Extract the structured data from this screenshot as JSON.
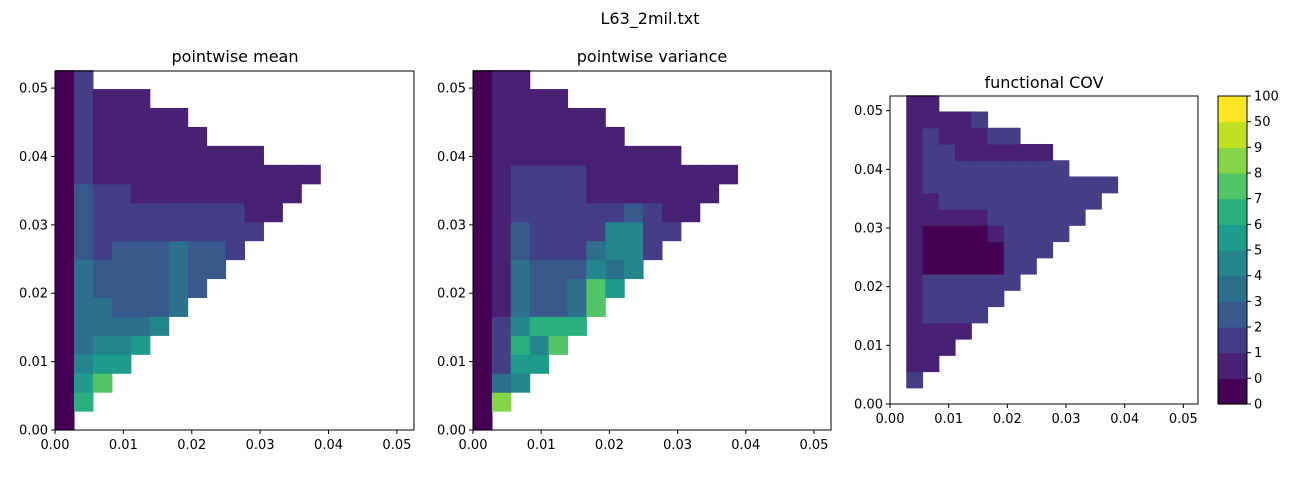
{
  "figure": {
    "suptitle": "L63_2mil.txt"
  },
  "chart_data": [
    {
      "type": "heatmap",
      "title": "pointwise mean",
      "xlabel": "",
      "ylabel": "",
      "xlim": [
        0.0,
        0.0525
      ],
      "ylim": [
        0.0,
        0.0525
      ],
      "xticks": [
        "0.00",
        "0.01",
        "0.02",
        "0.03",
        "0.04",
        "0.05"
      ],
      "yticks": [
        "0.00",
        "0.01",
        "0.02",
        "0.03",
        "0.04",
        "0.05"
      ],
      "cell_size": 0.00277,
      "cells": {
        "0": [
          [
            0,
            19,
            0
          ]
        ],
        "1": [
          [
            1,
            2,
            7
          ],
          [
            2,
            3,
            6
          ],
          [
            3,
            4,
            5
          ],
          [
            4,
            9,
            4
          ],
          [
            9,
            13,
            3
          ],
          [
            13,
            19,
            2
          ]
        ],
        "2": [
          [
            2,
            3,
            8
          ],
          [
            3,
            4,
            6
          ],
          [
            4,
            5,
            5
          ],
          [
            5,
            7,
            4
          ],
          [
            7,
            9,
            3
          ],
          [
            9,
            13,
            2
          ],
          [
            13,
            18,
            1
          ]
        ],
        "3": [
          [
            3,
            4,
            6
          ],
          [
            4,
            5,
            5
          ],
          [
            5,
            6,
            4
          ],
          [
            6,
            10,
            3
          ],
          [
            10,
            13,
            2
          ],
          [
            13,
            18,
            1
          ]
        ],
        "4": [
          [
            4,
            5,
            6
          ],
          [
            5,
            6,
            4
          ],
          [
            6,
            10,
            3
          ],
          [
            10,
            12,
            2
          ],
          [
            12,
            18,
            1
          ]
        ],
        "5": [
          [
            5,
            6,
            5
          ],
          [
            6,
            10,
            3
          ],
          [
            10,
            12,
            2
          ],
          [
            12,
            17,
            1
          ]
        ],
        "6": [
          [
            6,
            10,
            4
          ],
          [
            10,
            12,
            2
          ],
          [
            12,
            17,
            1
          ]
        ],
        "7": [
          [
            7,
            10,
            3
          ],
          [
            10,
            12,
            2
          ],
          [
            12,
            16,
            1
          ]
        ],
        "8": [
          [
            8,
            10,
            3
          ],
          [
            10,
            12,
            2
          ],
          [
            12,
            15,
            1
          ]
        ],
        "9": [
          [
            9,
            12,
            2
          ],
          [
            12,
            15,
            1
          ]
        ],
        "10": [
          [
            10,
            11,
            2
          ],
          [
            11,
            15,
            1
          ]
        ],
        "11": [
          [
            11,
            14,
            1
          ]
        ],
        "12": [
          [
            12,
            14,
            1
          ]
        ],
        "13": [
          [
            13,
            14,
            1
          ]
        ]
      }
    },
    {
      "type": "heatmap",
      "title": "pointwise variance",
      "xlabel": "",
      "ylabel": "",
      "xlim": [
        0.0,
        0.0525
      ],
      "ylim": [
        0.0,
        0.0525
      ],
      "xticks": [
        "0.00",
        "0.01",
        "0.02",
        "0.03",
        "0.04",
        "0.05"
      ],
      "yticks": [
        "0.00",
        "0.01",
        "0.02",
        "0.03",
        "0.04",
        "0.05"
      ],
      "cell_size": 0.00277,
      "cells": {
        "0": [
          [
            0,
            19,
            0
          ]
        ],
        "1": [
          [
            1,
            2,
            9
          ],
          [
            2,
            3,
            4
          ],
          [
            3,
            6,
            2
          ],
          [
            6,
            19,
            1
          ]
        ],
        "2": [
          [
            2,
            3,
            5
          ],
          [
            3,
            4,
            6
          ],
          [
            4,
            5,
            7
          ],
          [
            5,
            6,
            5
          ],
          [
            6,
            9,
            4
          ],
          [
            9,
            11,
            3
          ],
          [
            11,
            14,
            2
          ],
          [
            14,
            19,
            1
          ]
        ],
        "3": [
          [
            3,
            4,
            6
          ],
          [
            4,
            5,
            5
          ],
          [
            5,
            6,
            7
          ],
          [
            6,
            9,
            3
          ],
          [
            9,
            14,
            2
          ],
          [
            14,
            18,
            1
          ]
        ],
        "4": [
          [
            4,
            5,
            8
          ],
          [
            5,
            6,
            7
          ],
          [
            6,
            9,
            3
          ],
          [
            9,
            14,
            2
          ],
          [
            14,
            18,
            1
          ]
        ],
        "5": [
          [
            5,
            6,
            7
          ],
          [
            6,
            8,
            4
          ],
          [
            8,
            9,
            3
          ],
          [
            9,
            14,
            2
          ],
          [
            14,
            17,
            1
          ]
        ],
        "6": [
          [
            6,
            8,
            8
          ],
          [
            8,
            9,
            5
          ],
          [
            9,
            10,
            4
          ],
          [
            10,
            12,
            2
          ],
          [
            12,
            17,
            1
          ]
        ],
        "7": [
          [
            7,
            8,
            6
          ],
          [
            8,
            9,
            4
          ],
          [
            9,
            11,
            5
          ],
          [
            11,
            12,
            2
          ],
          [
            12,
            16,
            1
          ]
        ],
        "8": [
          [
            8,
            9,
            5
          ],
          [
            9,
            11,
            5
          ],
          [
            11,
            12,
            3
          ],
          [
            12,
            15,
            1
          ]
        ],
        "9": [
          [
            9,
            12,
            2
          ],
          [
            12,
            15,
            1
          ]
        ],
        "10": [
          [
            10,
            11,
            2
          ],
          [
            11,
            15,
            1
          ]
        ],
        "11": [
          [
            11,
            14,
            1
          ]
        ],
        "12": [
          [
            12,
            14,
            1
          ]
        ],
        "13": [
          [
            13,
            14,
            1
          ]
        ]
      }
    },
    {
      "type": "heatmap",
      "title": "functional COV",
      "xlabel": "",
      "ylabel": "",
      "xlim": [
        0.0,
        0.0525
      ],
      "ylim": [
        0.0,
        0.0525
      ],
      "xticks": [
        "0.00",
        "0.01",
        "0.02",
        "0.03",
        "0.04",
        "0.05"
      ],
      "yticks": [
        "0.00",
        "0.01",
        "0.02",
        "0.03",
        "0.04",
        "0.05"
      ],
      "cell_size": 0.00277,
      "cells": {
        "1": [
          [
            1,
            2,
            2
          ],
          [
            2,
            4,
            1
          ],
          [
            4,
            6,
            1
          ],
          [
            6,
            14,
            1
          ],
          [
            14,
            15,
            1
          ],
          [
            15,
            17,
            1
          ],
          [
            17,
            19,
            1
          ]
        ],
        "2": [
          [
            2,
            5,
            1
          ],
          [
            5,
            8,
            2
          ],
          [
            8,
            11,
            0
          ],
          [
            11,
            13,
            1
          ],
          [
            13,
            17,
            2
          ],
          [
            17,
            19,
            1
          ]
        ],
        "3": [
          [
            3,
            5,
            1
          ],
          [
            5,
            8,
            2
          ],
          [
            8,
            11,
            0
          ],
          [
            11,
            12,
            1
          ],
          [
            12,
            16,
            2
          ],
          [
            16,
            17,
            1
          ],
          [
            17,
            18,
            1
          ]
        ],
        "4": [
          [
            4,
            5,
            1
          ],
          [
            5,
            8,
            2
          ],
          [
            8,
            11,
            0
          ],
          [
            11,
            12,
            1
          ],
          [
            12,
            15,
            2
          ],
          [
            15,
            17,
            1
          ],
          [
            17,
            18,
            1
          ]
        ],
        "5": [
          [
            5,
            8,
            2
          ],
          [
            8,
            11,
            0
          ],
          [
            11,
            12,
            1
          ],
          [
            12,
            15,
            2
          ],
          [
            15,
            17,
            1
          ],
          [
            17,
            18,
            2
          ]
        ],
        "6": [
          [
            6,
            8,
            2
          ],
          [
            8,
            10,
            0
          ],
          [
            10,
            11,
            1
          ],
          [
            11,
            15,
            2
          ],
          [
            15,
            16,
            1
          ],
          [
            16,
            17,
            2
          ]
        ],
        "7": [
          [
            7,
            10,
            2
          ],
          [
            10,
            15,
            2
          ],
          [
            15,
            16,
            1
          ],
          [
            16,
            17,
            2
          ]
        ],
        "8": [
          [
            8,
            12,
            2
          ],
          [
            12,
            15,
            2
          ],
          [
            15,
            16,
            1
          ]
        ],
        "9": [
          [
            9,
            12,
            2
          ],
          [
            12,
            15,
            2
          ],
          [
            15,
            16,
            1
          ]
        ],
        "10": [
          [
            10,
            14,
            2
          ],
          [
            14,
            15,
            2
          ]
        ],
        "11": [
          [
            11,
            14,
            2
          ]
        ],
        "12": [
          [
            12,
            14,
            2
          ]
        ],
        "13": [
          [
            13,
            14,
            2
          ]
        ]
      }
    }
  ],
  "colorbar": {
    "labels": [
      "0",
      "0",
      "1",
      "2",
      "3",
      "4",
      "5",
      "6",
      "7",
      "8",
      "9",
      "50",
      "100"
    ],
    "colors": [
      "#440154",
      "#482173",
      "#433e85",
      "#38598c",
      "#2d708e",
      "#25858e",
      "#1e9b8a",
      "#2ab07f",
      "#52c569",
      "#86d549",
      "#c2df23",
      "#fde725"
    ]
  }
}
